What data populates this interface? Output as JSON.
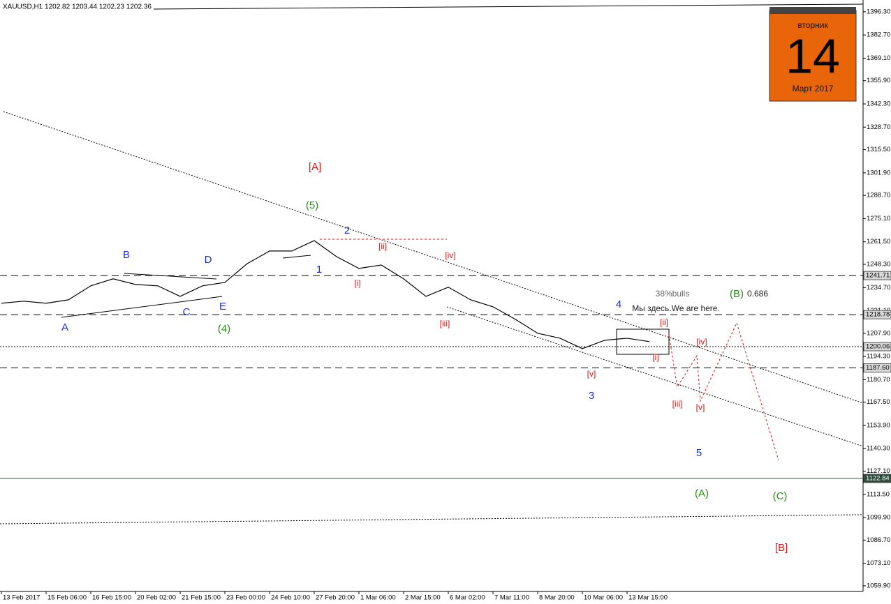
{
  "chart_data": {
    "type": "line",
    "header": "XAUUSD,H1  1202.82 1203.44 1202.23 1202.36",
    "categories": [
      "13 Feb 2017",
      null,
      "15 Feb 06:00",
      null,
      "16 Feb 15:00",
      null,
      "20 Feb 02:00",
      null,
      "21 Feb 15:00",
      null,
      "23 Feb 00:00",
      null,
      "24 Feb 10:00",
      null,
      "27 Feb 20:00",
      null,
      "1 Mar 06:00",
      null,
      "2 Mar 15:00",
      null,
      "6 Mar 02:00",
      null,
      "7 Mar 11:00",
      null,
      "8 Mar 20:00",
      null,
      "10 Mar 06:00",
      null,
      "13 Mar 15:00",
      null
    ],
    "series": [
      {
        "name": "XAUUSD,H1",
        "color": "#000000",
        "values": [
          1225.5,
          1226.7,
          1225.5,
          1227.5,
          1235.7,
          1239.8,
          1236.5,
          1235.7,
          1229.5,
          1235.7,
          1237.7,
          1248.7,
          1256.1,
          1256.1,
          1262.2,
          1252.8,
          1245.9,
          1247.9,
          1239.8,
          1229.5,
          1234.9,
          1227.5,
          1223.4,
          1216.1,
          1207.9,
          1205.0,
          1198.9,
          1203.8,
          1205.0,
          1203.0
        ]
      }
    ],
    "ylim": [
      1056.6,
      1403.2
    ],
    "yticks": [
      {
        "value": 1396.3,
        "label": "1396.30"
      },
      {
        "value": 1382.7,
        "label": "1382.70"
      },
      {
        "value": 1369.1,
        "label": "1369.10"
      },
      {
        "value": 1355.9,
        "label": "1355.90"
      },
      {
        "value": 1342.3,
        "label": "1342.30"
      },
      {
        "value": 1328.7,
        "label": "1328.70"
      },
      {
        "value": 1315.5,
        "label": "1315.50"
      },
      {
        "value": 1301.9,
        "label": "1301.90"
      },
      {
        "value": 1288.7,
        "label": "1288.70"
      },
      {
        "value": 1275.1,
        "label": "1275.10"
      },
      {
        "value": 1261.5,
        "label": "1261.50"
      },
      {
        "value": 1248.3,
        "label": "1248.30"
      },
      {
        "value": 1234.7,
        "label": "1234.70"
      },
      {
        "value": 1221.1,
        "label": "1221.10"
      },
      {
        "value": 1207.9,
        "label": "1207.90"
      },
      {
        "value": 1194.3,
        "label": "1194.30"
      },
      {
        "value": 1180.7,
        "label": "1180.70"
      },
      {
        "value": 1167.5,
        "label": "1167.50"
      },
      {
        "value": 1153.9,
        "label": "1153.90"
      },
      {
        "value": 1140.3,
        "label": "1140.30"
      },
      {
        "value": 1127.1,
        "label": "1127.10"
      },
      {
        "value": 1113.5,
        "label": "1113.50"
      },
      {
        "value": 1099.9,
        "label": "1099.90"
      },
      {
        "value": 1086.7,
        "label": "1086.70"
      },
      {
        "value": 1073.1,
        "label": "1073.10"
      },
      {
        "value": 1059.9,
        "label": "1059.90"
      }
    ],
    "levels": [
      1241.71,
      1218.78,
      1200.06,
      {
        "value": 1187.6,
        "label": "1187.60"
      },
      1122.84
    ],
    "annotations": [
      "[A]",
      "(5)",
      "2",
      "[ii]",
      "[iv]",
      "1",
      "[i]",
      "B",
      "D",
      "A",
      "C",
      "E",
      "(4)",
      "[iii]",
      "3",
      "[v]",
      "4",
      "38%bulls",
      "(B)",
      "0.686",
      "Мы здесь.We are here.",
      "[ii]",
      "[i]",
      "[iv]",
      "[iii]",
      "[v]",
      "5",
      "(A)",
      "(C)",
      "[B]"
    ],
    "calendar": {
      "weekday": "вторник",
      "day": "14",
      "month": "Март 2017"
    }
  }
}
